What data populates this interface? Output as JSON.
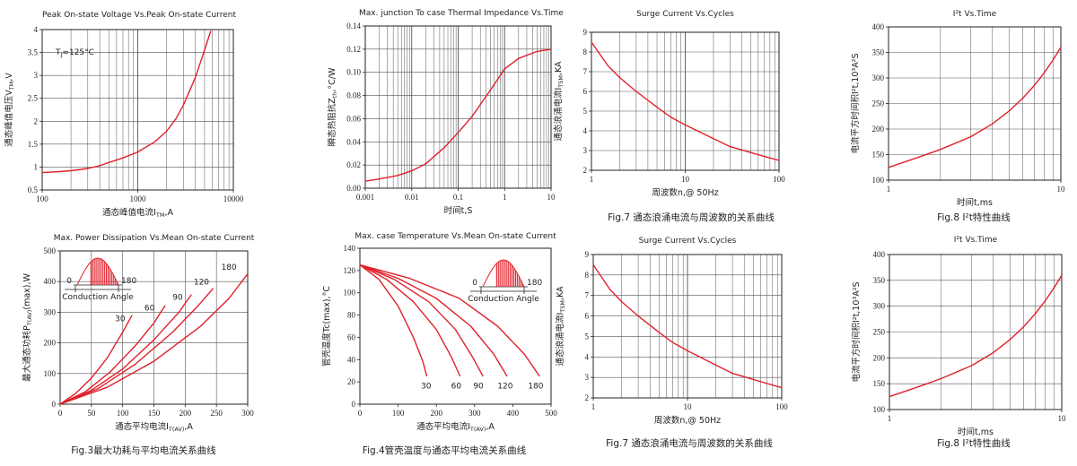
{
  "chart_data": [
    {
      "id": "c1",
      "type": "line",
      "title": "Peak On-state Voltage Vs.Peak On-state Current",
      "caption": "",
      "ylabel": "通态峰值电压V",
      "ylabel_sub": "TM",
      "ylabel_tail": ",V",
      "xlabel": "通态峰值电流I",
      "xlabel_sub": "TM",
      "xlabel_tail": ",A",
      "xscale": "log",
      "xlim": [
        100,
        10000
      ],
      "ylim": [
        0.5,
        4
      ],
      "xticks": [
        100,
        1000,
        10000
      ],
      "xtick_labels": [
        "100",
        "1000",
        "10000"
      ],
      "yticks": [
        0.5,
        1,
        1.5,
        2,
        2.5,
        3,
        3.5,
        4
      ],
      "ytick_labels": [
        "0.5",
        "1",
        "1.5",
        "2",
        "2.5",
        "3",
        "3.5",
        "4"
      ],
      "grid": true,
      "annotation": "T",
      "annotation_sub": "J",
      "annotation_tail": "=125°C",
      "series": [
        {
          "x": [
            100,
            150,
            200,
            300,
            400,
            500,
            700,
            1000,
            1500,
            2000,
            2500,
            3000,
            4000,
            5000,
            5800
          ],
          "y": [
            0.88,
            0.9,
            0.92,
            0.97,
            1.03,
            1.1,
            1.2,
            1.33,
            1.55,
            1.78,
            2.05,
            2.35,
            2.95,
            3.55,
            3.97
          ]
        }
      ]
    },
    {
      "id": "c2",
      "type": "line",
      "title": "Max. junction To case Thermal Impedance Vs.Time",
      "caption": "",
      "ylabel": "瞬态热阻抗Z",
      "ylabel_sub": "th",
      "ylabel_tail": ",°C/W",
      "xlabel": "时间t,S",
      "xlabel_sub": "",
      "xlabel_tail": "",
      "xscale": "log",
      "xlim": [
        0.001,
        10
      ],
      "ylim": [
        0,
        0.14
      ],
      "xticks": [
        0.001,
        0.01,
        0.1,
        1,
        10
      ],
      "xtick_labels": [
        "0.001",
        "0.01",
        "0.1",
        "1",
        "10"
      ],
      "yticks": [
        0,
        0.02,
        0.04,
        0.06,
        0.08,
        0.1,
        0.12,
        0.14
      ],
      "ytick_labels": [
        "0.00",
        "0.02",
        "0.04",
        "0.06",
        "0.08",
        "0.10",
        "0.12",
        "0.14"
      ],
      "grid": true,
      "series": [
        {
          "x": [
            0.001,
            0.002,
            0.005,
            0.01,
            0.02,
            0.05,
            0.1,
            0.2,
            0.5,
            1,
            2,
            5,
            10
          ],
          "y": [
            0.006,
            0.008,
            0.011,
            0.015,
            0.021,
            0.035,
            0.048,
            0.062,
            0.085,
            0.103,
            0.112,
            0.118,
            0.12
          ]
        }
      ]
    },
    {
      "id": "c3",
      "type": "line",
      "title": "Surge Current Vs.Cycles",
      "caption": "Fig.7 通态浪涌电流与周波数的关系曲线",
      "ylabel": "通态浪涌电流I",
      "ylabel_sub": "TSM",
      "ylabel_tail": ",KA",
      "xlabel": "周波数n,@ 50Hz",
      "xlabel_sub": "",
      "xlabel_tail": "",
      "xscale": "log",
      "xlim": [
        1,
        100
      ],
      "ylim": [
        2,
        9
      ],
      "xticks": [
        1,
        10,
        100
      ],
      "xtick_labels": [
        "1",
        "10",
        "100"
      ],
      "yticks": [
        2,
        3,
        4,
        5,
        6,
        7,
        8,
        9
      ],
      "ytick_labels": [
        "2",
        "3",
        "4",
        "5",
        "6",
        "7",
        "8",
        "9"
      ],
      "grid": true,
      "series": [
        {
          "x": [
            1,
            1.5,
            2,
            3,
            5,
            7,
            10,
            20,
            30,
            50,
            70,
            100
          ],
          "y": [
            8.5,
            7.3,
            6.7,
            6.0,
            5.2,
            4.7,
            4.3,
            3.6,
            3.2,
            2.9,
            2.7,
            2.5
          ]
        }
      ]
    },
    {
      "id": "c4",
      "type": "line",
      "title": "I²t  Vs.Time",
      "caption": "Fig.8 I²t特性曲线",
      "ylabel": "电流平方时间积I²t,10³A²S",
      "ylabel_sub": "",
      "ylabel_tail": "",
      "xlabel": "时间t,ms",
      "xlabel_sub": "",
      "xlabel_tail": "",
      "xscale": "log",
      "xlim": [
        1,
        10
      ],
      "ylim": [
        100,
        400
      ],
      "xticks": [
        1,
        10
      ],
      "xtick_labels": [
        "1",
        "10"
      ],
      "yticks": [
        100,
        150,
        200,
        250,
        300,
        350,
        400
      ],
      "ytick_labels": [
        "100",
        "150",
        "200",
        "250",
        "300",
        "350",
        "400"
      ],
      "grid": true,
      "series": [
        {
          "x": [
            1,
            1.5,
            2,
            3,
            4,
            5,
            6,
            7,
            8,
            9,
            10
          ],
          "y": [
            125,
            145,
            160,
            185,
            210,
            235,
            260,
            285,
            310,
            335,
            360
          ]
        }
      ]
    },
    {
      "id": "c5",
      "type": "line",
      "title": "Max. Power Dissipation Vs.Mean On-state Current",
      "caption": "Fig.3最大功耗与平均电流关系曲线",
      "ylabel": "最大通态功耗P",
      "ylabel_sub": "T(AV)",
      "ylabel_tail": "(max),W",
      "xlabel": "通态平均电流I",
      "xlabel_sub": "T(AV)",
      "xlabel_tail": ",A",
      "xscale": "linear",
      "xlim": [
        0,
        300
      ],
      "ylim": [
        0,
        500
      ],
      "xticks": [
        0,
        50,
        100,
        150,
        200,
        250,
        300
      ],
      "xtick_labels": [
        "0",
        "50",
        "100",
        "150",
        "200",
        "250",
        "300"
      ],
      "yticks": [
        0,
        100,
        200,
        300,
        400,
        500
      ],
      "ytick_labels": [
        "0",
        "100",
        "200",
        "300",
        "400",
        "500"
      ],
      "grid": true,
      "inset_label": "Conduction Angle",
      "inset_left": "0",
      "inset_right": "180",
      "series": [
        {
          "name": "30",
          "x": [
            0,
            25,
            50,
            75,
            100,
            115
          ],
          "y": [
            0,
            35,
            85,
            150,
            235,
            290
          ]
        },
        {
          "name": "60",
          "x": [
            0,
            40,
            80,
            120,
            150,
            168
          ],
          "y": [
            0,
            40,
            105,
            190,
            265,
            322
          ]
        },
        {
          "name": "90",
          "x": [
            0,
            50,
            100,
            150,
            190,
            210
          ],
          "y": [
            0,
            45,
            115,
            210,
            300,
            358
          ]
        },
        {
          "name": "120",
          "x": [
            0,
            60,
            120,
            180,
            220,
            245
          ],
          "y": [
            0,
            50,
            130,
            235,
            320,
            378
          ]
        },
        {
          "name": "180",
          "x": [
            0,
            75,
            150,
            225,
            270,
            300
          ],
          "y": [
            0,
            55,
            140,
            255,
            345,
            425
          ]
        }
      ],
      "series_labels": [
        {
          "text": "30",
          "x": 96,
          "y": 270
        },
        {
          "text": "60",
          "x": 143,
          "y": 305
        },
        {
          "text": "90",
          "x": 188,
          "y": 340
        },
        {
          "text": "120",
          "x": 226,
          "y": 390
        },
        {
          "text": "180",
          "x": 270,
          "y": 438
        }
      ]
    },
    {
      "id": "c6",
      "type": "line",
      "title": "Max. case Temperature Vs.Mean On-state Current",
      "caption": "Fig.4管壳温度与通态平均电流关系曲线",
      "ylabel": "管壳温度Tc(max),°C",
      "ylabel_sub": "",
      "ylabel_tail": "",
      "xlabel": "通态平均电流I",
      "xlabel_sub": "T(AV)",
      "xlabel_tail": ",A",
      "xscale": "linear",
      "xlim": [
        0,
        500
      ],
      "ylim": [
        0,
        140
      ],
      "xticks": [
        0,
        100,
        200,
        300,
        400,
        500
      ],
      "xtick_labels": [
        "0",
        "100",
        "200",
        "300",
        "400",
        "500"
      ],
      "yticks": [
        0,
        20,
        40,
        60,
        80,
        100,
        120,
        140
      ],
      "ytick_labels": [
        "0",
        "20",
        "40",
        "60",
        "80",
        "100",
        "120",
        "140"
      ],
      "grid": false,
      "inset_label": "Conduction Angle",
      "inset_left": "0",
      "inset_right": "180",
      "series": [
        {
          "name": "30",
          "x": [
            0,
            50,
            100,
            140,
            165,
            175
          ],
          "y": [
            125,
            112,
            88,
            60,
            38,
            25
          ]
        },
        {
          "name": "60",
          "x": [
            0,
            70,
            140,
            200,
            240,
            262
          ],
          "y": [
            125,
            112,
            92,
            67,
            42,
            25
          ]
        },
        {
          "name": "90",
          "x": [
            0,
            90,
            180,
            250,
            295,
            322
          ],
          "y": [
            125,
            112,
            92,
            67,
            42,
            25
          ]
        },
        {
          "name": "120",
          "x": [
            0,
            100,
            200,
            290,
            350,
            385
          ],
          "y": [
            125,
            113,
            95,
            70,
            45,
            25
          ]
        },
        {
          "name": "180",
          "x": [
            0,
            130,
            260,
            360,
            430,
            470
          ],
          "y": [
            125,
            113,
            95,
            70,
            45,
            25
          ]
        }
      ],
      "series_labels": [
        {
          "text": "30",
          "x": 173,
          "y": 14
        },
        {
          "text": "60",
          "x": 252,
          "y": 14
        },
        {
          "text": "90",
          "x": 310,
          "y": 14
        },
        {
          "text": "120",
          "x": 380,
          "y": 14
        },
        {
          "text": "180",
          "x": 460,
          "y": 14
        }
      ]
    },
    {
      "id": "c7",
      "type": "line",
      "title": "Surge Current Vs.Cycles",
      "caption": "Fig.7 通态浪涌电流与周波数的关系曲线",
      "ylabel": "通态浪涌电流I",
      "ylabel_sub": "TSM",
      "ylabel_tail": ",KA",
      "xlabel": "周波数n,@ 50Hz",
      "xlabel_sub": "",
      "xlabel_tail": "",
      "xscale": "log",
      "xlim": [
        1,
        100
      ],
      "ylim": [
        2,
        9
      ],
      "xticks": [
        1,
        10,
        100
      ],
      "xtick_labels": [
        "1",
        "10",
        "100"
      ],
      "yticks": [
        2,
        3,
        4,
        5,
        6,
        7,
        8,
        9
      ],
      "ytick_labels": [
        "2",
        "3",
        "4",
        "5",
        "6",
        "7",
        "8",
        "9"
      ],
      "grid": true,
      "series": [
        {
          "x": [
            1,
            1.5,
            2,
            3,
            5,
            7,
            10,
            20,
            30,
            50,
            70,
            100
          ],
          "y": [
            8.5,
            7.3,
            6.7,
            6.0,
            5.2,
            4.7,
            4.3,
            3.6,
            3.2,
            2.9,
            2.7,
            2.5
          ]
        }
      ]
    },
    {
      "id": "c8",
      "type": "line",
      "title": "I²t  Vs.Time",
      "caption": "Fig.8 I²t特性曲线",
      "ylabel": "电流平方时间积I²t,10³A²S",
      "ylabel_sub": "",
      "ylabel_tail": "",
      "xlabel": "时间t,ms",
      "xlabel_sub": "",
      "xlabel_tail": "",
      "xscale": "log",
      "xlim": [
        1,
        10
      ],
      "ylim": [
        100,
        400
      ],
      "xticks": [
        1,
        10
      ],
      "xtick_labels": [
        "1",
        "10"
      ],
      "yticks": [
        100,
        150,
        200,
        250,
        300,
        350,
        400
      ],
      "ytick_labels": [
        "100",
        "150",
        "200",
        "250",
        "300",
        "350",
        "400"
      ],
      "grid": true,
      "series": [
        {
          "x": [
            1,
            1.5,
            2,
            3,
            4,
            5,
            6,
            7,
            8,
            9,
            10
          ],
          "y": [
            125,
            145,
            160,
            185,
            210,
            235,
            260,
            285,
            310,
            335,
            360
          ]
        }
      ]
    }
  ],
  "colors": {
    "curve": "#e0202a",
    "axis": "#222222",
    "grid": "#555555"
  }
}
